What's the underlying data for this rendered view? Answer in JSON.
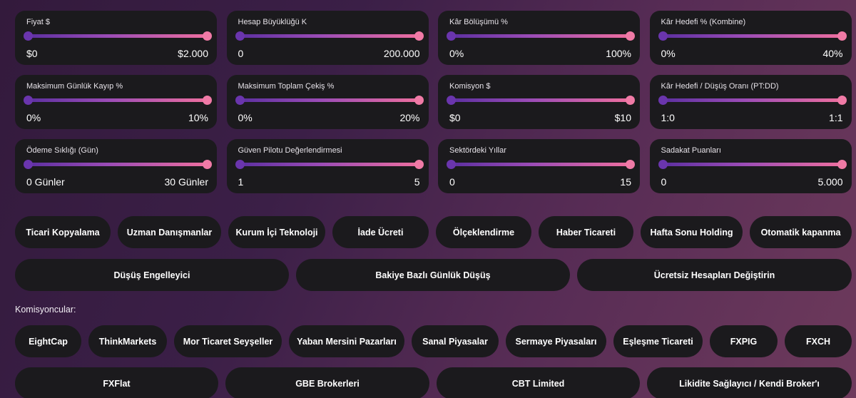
{
  "sliders": [
    {
      "label": "Fiyat $",
      "min": "$0",
      "max": "$2.000"
    },
    {
      "label": "Hesap Büyüklüğü K",
      "min": "0",
      "max": "200.000"
    },
    {
      "label": "Kâr Bölüşümü %",
      "min": "0%",
      "max": "100%"
    },
    {
      "label": "Kâr Hedefi % (Kombine)",
      "min": "0%",
      "max": "40%"
    },
    {
      "label": "Maksimum Günlük Kayıp %",
      "min": "0%",
      "max": "10%"
    },
    {
      "label": "Maksimum Toplam Çekiş %",
      "min": "0%",
      "max": "20%"
    },
    {
      "label": "Komisyon $",
      "min": "$0",
      "max": "$10"
    },
    {
      "label": "Kâr Hedefi / Düşüş Oranı (PT:DD)",
      "min": "1:0",
      "max": "1:1"
    },
    {
      "label": "Ödeme Sıklığı (Gün)",
      "min": "0 Günler",
      "max": "30 Günler"
    },
    {
      "label": "Güven Pilotu Değerlendirmesi",
      "min": "1",
      "max": "5"
    },
    {
      "label": "Sektördeki Yıllar",
      "min": "0",
      "max": "15"
    },
    {
      "label": "Sadakat Puanları",
      "min": "0",
      "max": "5.000"
    }
  ],
  "features": [
    "Ticari Kopyalama",
    "Uzman Danışmanlar",
    "Kurum İçi Teknoloji",
    "İade Ücreti",
    "Ölçeklendirme",
    "Haber Ticareti",
    "Hafta Sonu Holding",
    "Otomatik kapanma",
    "Düşüş Engelleyici",
    "Bakiye Bazlı Günlük Düşüş",
    "Ücretsiz Hesapları Değiştirin"
  ],
  "brokers_label": "Komisyoncular:",
  "brokers": [
    "EightCap",
    "ThinkMarkets",
    "Mor Ticaret Seyşeller",
    "Yaban Mersini Pazarları",
    "Sanal Piyasalar",
    "Sermaye Piyasaları",
    "Eşleşme Ticareti",
    "FXPIG",
    "FXCH",
    "FXFlat",
    "GBE Brokerleri",
    "CBT Limited",
    "Likidite Sağlayıcı / Kendi Broker'ı"
  ]
}
